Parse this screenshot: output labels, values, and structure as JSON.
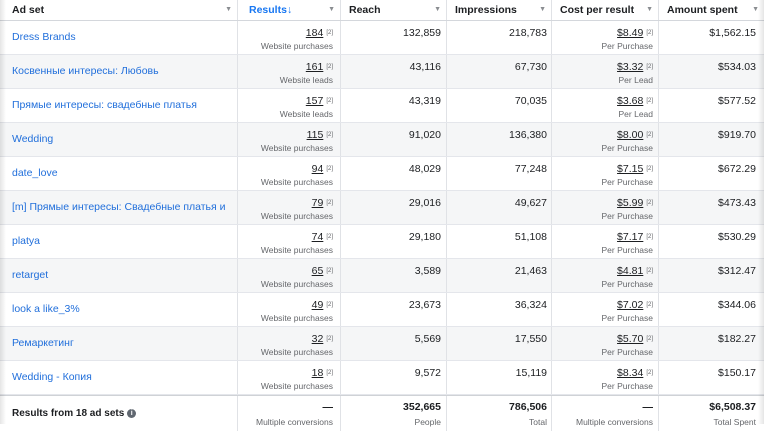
{
  "columns": {
    "adset": "Ad set",
    "results": "Results",
    "results_sort_icon": "↓",
    "reach": "Reach",
    "impressions": "Impressions",
    "cpr": "Cost per result",
    "spent": "Amount spent",
    "dropdown_icon": "▼"
  },
  "footnote_mark": "[2]",
  "rows": [
    {
      "name": "Dress Brands",
      "results": "184",
      "results_type": "Website purchases",
      "reach": "132,859",
      "impressions": "218,783",
      "cpr": "$8.49",
      "cpr_type": "Per Purchase",
      "spent": "$1,562.15"
    },
    {
      "name": "Косвенные интересы: Любовь",
      "results": "161",
      "results_type": "Website leads",
      "reach": "43,116",
      "impressions": "67,730",
      "cpr": "$3.32",
      "cpr_type": "Per Lead",
      "spent": "$534.03"
    },
    {
      "name": "Прямые интересы: свадебные платья",
      "results": "157",
      "results_type": "Website leads",
      "reach": "43,319",
      "impressions": "70,035",
      "cpr": "$3.68",
      "cpr_type": "Per Lead",
      "spent": "$577.52"
    },
    {
      "name": "Wedding",
      "results": "115",
      "results_type": "Website purchases",
      "reach": "91,020",
      "impressions": "136,380",
      "cpr": "$8.00",
      "cpr_type": "Per Purchase",
      "spent": "$919.70"
    },
    {
      "name": "date_love",
      "results": "94",
      "results_type": "Website purchases",
      "reach": "48,029",
      "impressions": "77,248",
      "cpr": "$7.15",
      "cpr_type": "Per Purchase",
      "spent": "$672.29"
    },
    {
      "name": "[m] Прямые интересы: Свадебные платья и",
      "results": "79",
      "results_type": "Website purchases",
      "reach": "29,016",
      "impressions": "49,627",
      "cpr": "$5.99",
      "cpr_type": "Per Purchase",
      "spent": "$473.43"
    },
    {
      "name": "platya",
      "results": "74",
      "results_type": "Website purchases",
      "reach": "29,180",
      "impressions": "51,108",
      "cpr": "$7.17",
      "cpr_type": "Per Purchase",
      "spent": "$530.29"
    },
    {
      "name": "retarget",
      "results": "65",
      "results_type": "Website purchases",
      "reach": "3,589",
      "impressions": "21,463",
      "cpr": "$4.81",
      "cpr_type": "Per Purchase",
      "spent": "$312.47"
    },
    {
      "name": "look a like_3%",
      "results": "49",
      "results_type": "Website purchases",
      "reach": "23,673",
      "impressions": "36,324",
      "cpr": "$7.02",
      "cpr_type": "Per Purchase",
      "spent": "$344.06"
    },
    {
      "name": "Ремаркетинг",
      "results": "32",
      "results_type": "Website purchases",
      "reach": "5,569",
      "impressions": "17,550",
      "cpr": "$5.70",
      "cpr_type": "Per Purchase",
      "spent": "$182.27"
    },
    {
      "name": "Wedding - Копия",
      "results": "18",
      "results_type": "Website purchases",
      "reach": "9,572",
      "impressions": "15,119",
      "cpr": "$8.34",
      "cpr_type": "Per Purchase",
      "spent": "$150.17"
    }
  ],
  "footer": {
    "label": "Results from 18 ad sets",
    "info_icon": "i",
    "results": "—",
    "results_sub": "Multiple conversions",
    "reach": "352,665",
    "reach_sub": "People",
    "impressions": "786,506",
    "impressions_sub": "Total",
    "cpr": "—",
    "cpr_sub": "Multiple conversions",
    "spent": "$6,508.37",
    "spent_sub": "Total Spent"
  },
  "colors": {
    "link": "#216fdb",
    "accent": "#1877f2",
    "alt_row": "#f5f6f7"
  }
}
